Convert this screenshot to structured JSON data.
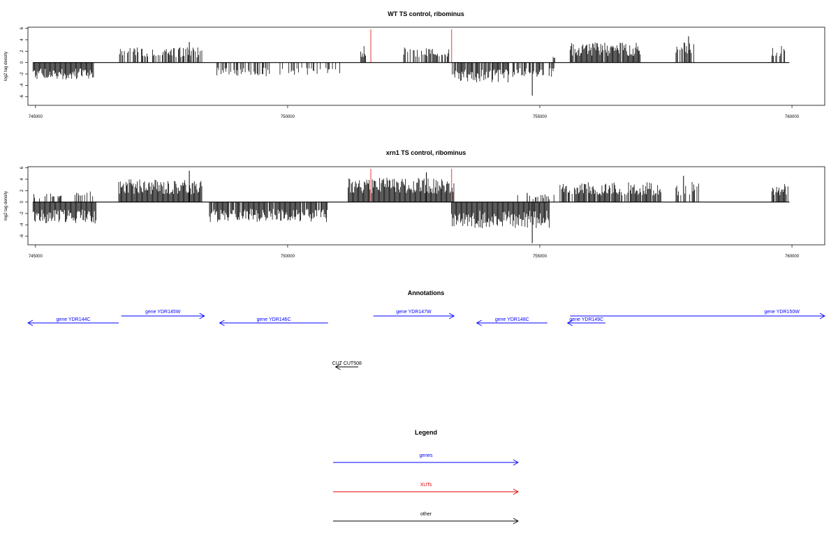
{
  "chart_data": [
    {
      "type": "bar",
      "title": "WT TS control, ribominus",
      "ylabel": "log2 tag density",
      "xlim": [
        744850,
        760650
      ],
      "ylim": [
        -7.5,
        6.2
      ],
      "yticks": [
        6,
        4,
        2,
        0,
        -2,
        -4,
        -6
      ],
      "xticks": [
        745000,
        750000,
        755000,
        760000
      ],
      "bar_color": "#000000",
      "marker_color": "#f07070",
      "markers": [
        751650,
        753250
      ],
      "segments": [
        {
          "start": 744950,
          "end": 746150,
          "amp": -2.2,
          "density": 1.0,
          "seed": 11
        },
        {
          "start": 746650,
          "end": 748300,
          "amp": 2.0,
          "density": 0.6,
          "seed": 12
        },
        {
          "start": 748550,
          "end": 749700,
          "amp": -1.8,
          "density": 0.5,
          "seed": 13
        },
        {
          "start": 749800,
          "end": 751100,
          "amp": -1.6,
          "density": 0.35,
          "seed": 14
        },
        {
          "start": 751450,
          "end": 751550,
          "amp": 2.2,
          "density": 1.0,
          "seed": 15
        },
        {
          "start": 752300,
          "end": 753200,
          "amp": 2.0,
          "density": 0.6,
          "seed": 16
        },
        {
          "start": 753250,
          "end": 754400,
          "amp": -2.6,
          "density": 0.9,
          "seed": 17
        },
        {
          "start": 754400,
          "end": 755300,
          "amp": -2.0,
          "density": 0.6,
          "seed": 18
        },
        {
          "start": 755200,
          "end": 755400,
          "amp": 1.2,
          "density": 0.4,
          "seed": 19
        },
        {
          "start": 755600,
          "end": 757000,
          "amp": 2.6,
          "density": 0.95,
          "seed": 20
        },
        {
          "start": 757700,
          "end": 758100,
          "amp": 2.6,
          "density": 0.7,
          "seed": 21
        },
        {
          "start": 759600,
          "end": 759900,
          "amp": 2.5,
          "density": 0.6,
          "seed": 22
        }
      ],
      "spikes": [
        [
          754850,
          -5.8
        ],
        [
          757950,
          4.6
        ],
        [
          748050,
          3.6
        ]
      ]
    },
    {
      "type": "bar",
      "title": "xrn1 TS control, ribominus",
      "ylabel": "log2 tag density",
      "xlim": [
        744850,
        760650
      ],
      "ylim": [
        -7.5,
        6.2
      ],
      "yticks": [
        6,
        4,
        2,
        0,
        -2,
        -4,
        -6
      ],
      "xticks": [
        745000,
        750000,
        755000,
        760000
      ],
      "bar_color": "#000000",
      "marker_color": "#f07070",
      "markers": [
        751650,
        753250
      ],
      "segments": [
        {
          "start": 744950,
          "end": 746200,
          "amp": -2.8,
          "density": 1.0,
          "seed": 31
        },
        {
          "start": 744950,
          "end": 746200,
          "amp": 1.4,
          "density": 0.25,
          "seed": 32
        },
        {
          "start": 746650,
          "end": 748300,
          "amp": 3.0,
          "density": 1.0,
          "seed": 33
        },
        {
          "start": 748450,
          "end": 750800,
          "amp": -2.6,
          "density": 0.9,
          "seed": 34
        },
        {
          "start": 751200,
          "end": 753300,
          "amp": 3.2,
          "density": 1.0,
          "seed": 35
        },
        {
          "start": 753250,
          "end": 755200,
          "amp": -3.4,
          "density": 1.0,
          "seed": 36
        },
        {
          "start": 754400,
          "end": 755300,
          "amp": 1.0,
          "density": 0.3,
          "seed": 37
        },
        {
          "start": 755400,
          "end": 757400,
          "amp": 2.6,
          "density": 0.9,
          "seed": 38
        },
        {
          "start": 757700,
          "end": 758300,
          "amp": 2.6,
          "density": 0.6,
          "seed": 39
        },
        {
          "start": 759600,
          "end": 759950,
          "amp": 2.4,
          "density": 0.8,
          "seed": 40
        }
      ],
      "spikes": [
        [
          754850,
          -7.2
        ],
        [
          748050,
          5.5
        ],
        [
          752750,
          5.2
        ],
        [
          757850,
          4.6
        ],
        [
          754750,
          1.6
        ]
      ]
    }
  ],
  "annotations": {
    "title": "Annotations",
    "features": [
      {
        "label": "gene YDR144C",
        "strand": "-",
        "start": 744850,
        "end": 746650,
        "row": 1,
        "color": "#0000ff"
      },
      {
        "label": "gene YDR145W",
        "strand": "+",
        "start": 746700,
        "end": 748350,
        "row": 0,
        "color": "#0000ff"
      },
      {
        "label": "gene YDR146C",
        "strand": "-",
        "start": 748650,
        "end": 750800,
        "row": 1,
        "color": "#0000ff"
      },
      {
        "label": "gene YDR147W",
        "strand": "+",
        "start": 751700,
        "end": 753300,
        "row": 0,
        "color": "#0000ff"
      },
      {
        "label": "gene YDR148C",
        "strand": "-",
        "start": 753750,
        "end": 755150,
        "row": 1,
        "color": "#0000ff"
      },
      {
        "label": "gene YDR149C",
        "strand": "-",
        "start": 755550,
        "end": 756300,
        "row": 1,
        "color": "#0000ff"
      },
      {
        "label": "gene YDR150W",
        "strand": "+",
        "start": 755600,
        "end": 760650,
        "row": 0,
        "color": "#0000ff",
        "label_x": 759800
      },
      {
        "label": "CUT CUT508",
        "strand": "-",
        "start": 750950,
        "end": 751400,
        "row": 2,
        "color": "#000000"
      }
    ]
  },
  "legend": {
    "title": "Legend",
    "items": [
      {
        "label": "genes",
        "color": "#0000ff"
      },
      {
        "label": "XUTs",
        "color": "#dd0000"
      },
      {
        "label": "other",
        "color": "#000000"
      }
    ]
  }
}
